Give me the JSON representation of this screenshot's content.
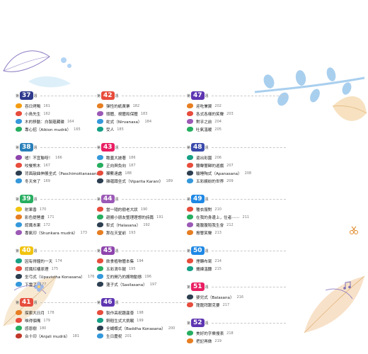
{
  "columns": [
    {
      "weeks": [
        {
          "num": "37",
          "color": "#2e3a8c",
          "prefix": "第",
          "suffix": "週",
          "entries": [
            {
              "title": "吞日烤鴨",
              "page": "161",
              "color": "#f39c12"
            },
            {
              "title": "小鳥先生",
              "page": "162",
              "color": "#e74c3c"
            },
            {
              "title": "木的移動：白製蘊藏碟",
              "page": "164",
              "color": "#3498db"
            },
            {
              "title": "專心招（Aikion mudrā）",
              "page": "165",
              "color": "#27ae60"
            }
          ]
        },
        {
          "num": "38",
          "color": "#2980b9",
          "prefix": "第",
          "suffix": "週",
          "entries": [
            {
              "title": "嘘！不宜聯呀！",
              "page": "166",
              "color": "#8e44ad"
            },
            {
              "title": "咬餐熊木",
              "page": "167",
              "color": "#e74c3c"
            },
            {
              "title": "背面敲曲伸展坐式（Paschimottanasana）",
              "page": "168",
              "color": "#2c3e50"
            },
            {
              "title": "冬天來了",
              "page": "169",
              "color": "#3498db"
            }
          ]
        },
        {
          "num": "39",
          "color": "#27ae60",
          "prefix": "第",
          "suffix": "週",
          "entries": [
            {
              "title": "射果香",
              "page": "170",
              "color": "#f1c40f"
            },
            {
              "title": "影色提琶畫",
              "page": "171",
              "color": "#e67e22"
            },
            {
              "title": "認識本果",
              "page": "172",
              "color": "#3498db"
            },
            {
              "title": "專氣印（Shunkara mudrā）",
              "page": "173",
              "color": "#9b59b6"
            }
          ]
        },
        {
          "num": "40",
          "color": "#f1c40f",
          "prefix": "第",
          "suffix": "週",
          "entries": [
            {
              "title": "因有得鐘的一天",
              "page": "174",
              "color": "#16a085"
            },
            {
              "title": "認識紅樓原理",
              "page": "175",
              "color": "#e74c3c"
            },
            {
              "title": "坐弓式（Upavistha Konasana）",
              "page": "176",
              "color": "#2c3e50"
            },
            {
              "title": "下雪了",
              "page": "177",
              "color": "#3498db"
            }
          ]
        },
        {
          "num": "41",
          "color": "#e74c3c",
          "prefix": "第",
          "suffix": "週",
          "entries": [
            {
              "title": "探索大日月",
              "page": "178",
              "color": "#e67e22"
            },
            {
              "title": "唯得個嘴",
              "page": "179",
              "color": "#e74c3c"
            },
            {
              "title": "感恩樹",
              "page": "180",
              "color": "#27ae60"
            },
            {
              "title": "合十印（Anjali mudrā）",
              "page": "181",
              "color": "#c0392b"
            }
          ]
        }
      ]
    },
    {
      "weeks": [
        {
          "num": "42",
          "color": "#e74c3c",
          "prefix": "第",
          "suffix": "週",
          "entries": [
            {
              "title": "彈性的紙黃寨",
              "page": "182",
              "color": "#e67e22"
            },
            {
              "title": "頭體、視體和保體",
              "page": "183",
              "color": "#9b59b6"
            },
            {
              "title": "蛇式（Nirvanasa）",
              "page": "184",
              "color": "#3498db"
            },
            {
              "title": "受人",
              "page": "185",
              "color": "#16a085"
            }
          ]
        },
        {
          "num": "43",
          "color": "#e91e63",
          "prefix": "第",
          "suffix": "週",
          "entries": [
            {
              "title": "瞻蓋大披著",
              "page": "186",
              "color": "#3498db"
            },
            {
              "title": "正向與負向",
              "page": "187",
              "color": "#27ae60"
            },
            {
              "title": "探索遠處",
              "page": "188",
              "color": "#e74c3c"
            },
            {
              "title": "雜蘊蹲坐式（Viparita Karani）",
              "page": "189",
              "color": "#2c3e50"
            }
          ]
        },
        {
          "num": "44",
          "color": "#9b59b6",
          "prefix": "第",
          "suffix": "週",
          "entries": [
            {
              "title": "當一隨的樹老大狀",
              "page": "190",
              "color": "#e74c3c"
            },
            {
              "title": "趙搬小朋友整理理想的詩篇",
              "page": "191",
              "color": "#27ae60"
            },
            {
              "title": "犁式（Halasana）",
              "page": "192",
              "color": "#2c3e50"
            },
            {
              "title": "那在天堂前",
              "page": "193",
              "color": "#e67e22"
            }
          ]
        },
        {
          "num": "45",
          "color": "#8e44ad",
          "prefix": "第",
          "suffix": "週",
          "entries": [
            {
              "title": "飲食植物體本集",
              "page": "194",
              "color": "#e74c3c"
            },
            {
              "title": "五彩滴牛腿",
              "page": "195",
              "color": "#27ae60"
            },
            {
              "title": "互的開乃的護物動態",
              "page": "196",
              "color": "#3498db"
            },
            {
              "title": "蓮子式（Sasilasana）",
              "page": "197",
              "color": "#2c3e50"
            }
          ]
        },
        {
          "num": "46",
          "color": "#5e35b1",
          "prefix": "第",
          "suffix": "週",
          "entries": [
            {
              "title": "製作高祝趣蘆薈",
              "page": "198",
              "color": "#e74c3c"
            },
            {
              "title": "銅翹生式大挑戰",
              "page": "199",
              "color": "#16a085"
            },
            {
              "title": "全蝴蝶式（Baddha Konasana）",
              "page": "200",
              "color": "#2c3e50"
            },
            {
              "title": "生日慶祝",
              "page": "201",
              "color": "#3498db"
            }
          ]
        }
      ]
    },
    {
      "weeks": [
        {
          "num": "47",
          "color": "#5e35b1",
          "prefix": "第",
          "suffix": "週",
          "entries": [
            {
              "title": "迎吃兼翼",
              "page": "202",
              "color": "#e67e22"
            },
            {
              "title": "各式各樣的笑聲",
              "page": "203",
              "color": "#e74c3c"
            },
            {
              "title": "對乎之前",
              "page": "204",
              "color": "#9b59b6"
            },
            {
              "title": "吐氣溫暖",
              "page": "205",
              "color": "#27ae60"
            }
          ]
        },
        {
          "num": "48",
          "color": "#3949ab",
          "prefix": "第",
          "suffix": "週",
          "entries": [
            {
              "title": "還出彩園",
              "page": "206",
              "color": "#16a085"
            },
            {
              "title": "聽聲響歸的遊戲",
              "page": "207",
              "color": "#e74c3c"
            },
            {
              "title": "驢睡陶式（Apanasana）",
              "page": "208",
              "color": "#2c3e50"
            },
            {
              "title": "五彩繽紛的世界",
              "page": "209",
              "color": "#3498db"
            }
          ]
        },
        {
          "num": "49",
          "color": "#1e88e5",
          "prefix": "第",
          "suffix": "週",
          "entries": [
            {
              "title": "種衣服對",
              "page": "210",
              "color": "#e74c3c"
            },
            {
              "title": "在我的身邊上，住者⋯⋯",
              "page": "211",
              "color": "#27ae60"
            },
            {
              "title": "蘿腹腹陪我生會",
              "page": "212",
              "color": "#9b59b6"
            },
            {
              "title": "撥響笑聲",
              "page": "213",
              "color": "#e67e22"
            }
          ]
        },
        {
          "num": "50",
          "color": "#1e88e5",
          "prefix": "第",
          "suffix": "週",
          "entries": [
            {
              "title": "煙轉布寫",
              "page": "214",
              "color": "#e74c3c"
            },
            {
              "title": "攤練溫聽",
              "page": "215",
              "color": "#16a085"
            }
          ]
        },
        {
          "num": "51",
          "color": "#e91e63",
          "prefix": "第",
          "suffix": "週",
          "entries": [
            {
              "title": "嬰兒式（Balasana）",
              "page": "216",
              "color": "#2c3e50"
            },
            {
              "title": "龍龍拜跟克要",
              "page": "217",
              "color": "#e74c3c"
            }
          ]
        },
        {
          "num": "52",
          "color": "#5e35b1",
          "prefix": "第",
          "suffix": "週",
          "entries": [
            {
              "title": "美好的字樂搜表",
              "page": "218",
              "color": "#27ae60"
            },
            {
              "title": "把記再做",
              "page": "219",
              "color": "#e67e22"
            }
          ]
        }
      ]
    }
  ]
}
